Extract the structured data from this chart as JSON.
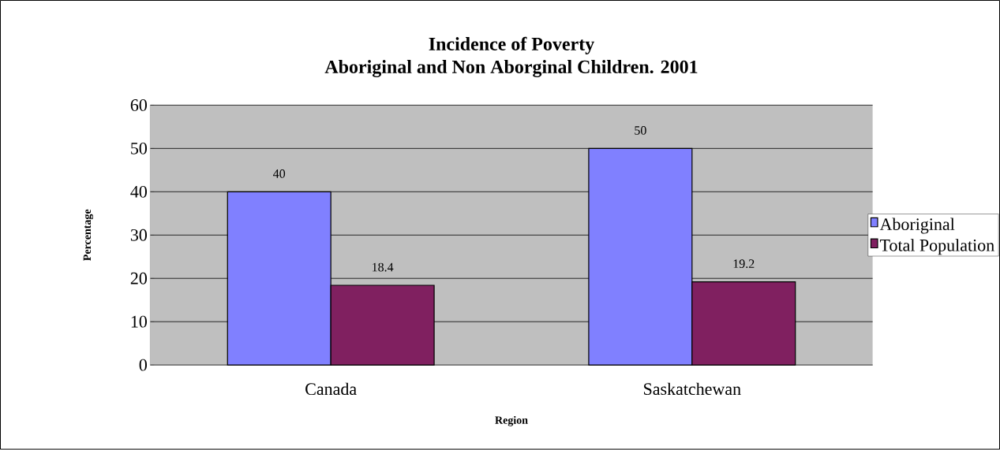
{
  "chart_data": {
    "type": "bar",
    "title": "Incidence of Poverty\nAboriginal and Non Aborginal Children. 2001",
    "xlabel": "Region",
    "ylabel": "Percentage",
    "categories": [
      "Canada",
      "Saskatchewan"
    ],
    "series": [
      {
        "name": "Aboriginal",
        "color": "#8080ff",
        "values": [
          40,
          50
        ]
      },
      {
        "name": "Total Population",
        "color": "#802060",
        "values": [
          18.4,
          19.2
        ]
      }
    ],
    "ylim": [
      0,
      60
    ],
    "yticks": [
      0,
      10,
      20,
      30,
      40,
      50,
      60
    ],
    "grid": "y",
    "legend": "right",
    "data_labels": true
  }
}
